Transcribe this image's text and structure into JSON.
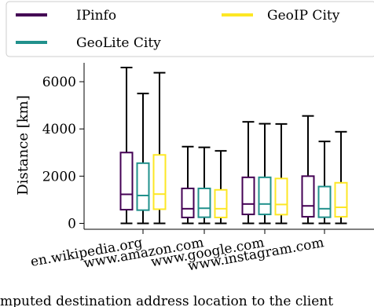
{
  "chart_data": {
    "type": "box",
    "title": "",
    "xlabel": "",
    "ylabel": "Distance [km]",
    "ylim": [
      -250,
      6800
    ],
    "yticks": [
      "0",
      "2000",
      "4000",
      "6000"
    ],
    "grid": false,
    "legend": {
      "placement": "top",
      "columns": 2
    },
    "categories": [
      "en.wikipedia.org",
      "www.amazon.com",
      "www.google.com",
      "www.instagram.com"
    ],
    "series": [
      {
        "name": "IPinfo",
        "color": "#440154",
        "boxes": [
          {
            "min": 0,
            "q1": 580,
            "median": 1230,
            "q3": 3000,
            "max": 6600
          },
          {
            "min": 0,
            "q1": 250,
            "median": 620,
            "q3": 1480,
            "max": 3250
          },
          {
            "min": 0,
            "q1": 380,
            "median": 820,
            "q3": 1950,
            "max": 4300
          },
          {
            "min": 0,
            "q1": 280,
            "median": 740,
            "q3": 2000,
            "max": 4550
          }
        ]
      },
      {
        "name": "GeoLite City",
        "color": "#21918c",
        "boxes": [
          {
            "min": 0,
            "q1": 560,
            "median": 1180,
            "q3": 2550,
            "max": 5500
          },
          {
            "min": 0,
            "q1": 260,
            "median": 640,
            "q3": 1480,
            "max": 3220
          },
          {
            "min": 0,
            "q1": 380,
            "median": 820,
            "q3": 1950,
            "max": 4220
          },
          {
            "min": 0,
            "q1": 260,
            "median": 620,
            "q3": 1560,
            "max": 3470
          }
        ]
      },
      {
        "name": "GeoIP City",
        "color": "#fde725",
        "boxes": [
          {
            "min": 0,
            "q1": 600,
            "median": 1240,
            "q3": 2900,
            "max": 6380
          },
          {
            "min": 0,
            "q1": 250,
            "median": 620,
            "q3": 1420,
            "max": 3070
          },
          {
            "min": 0,
            "q1": 370,
            "median": 800,
            "q3": 1900,
            "max": 4210
          },
          {
            "min": 0,
            "q1": 280,
            "median": 680,
            "q3": 1720,
            "max": 3880
          }
        ]
      }
    ],
    "caption_fragment": "mputed destination address location to the client"
  }
}
